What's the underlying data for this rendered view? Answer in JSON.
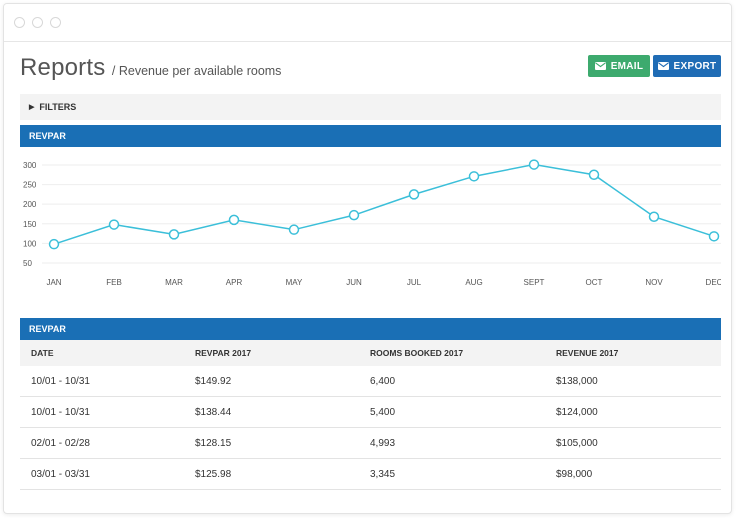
{
  "header": {
    "title": "Reports",
    "subtitle": "/ Revenue per available rooms",
    "email_label": "EMAIL",
    "export_label": "EXPORT"
  },
  "filters": {
    "label": "FILTERS"
  },
  "chart_section": {
    "title": "REVPAR"
  },
  "table_section": {
    "title": "REVPAR"
  },
  "colors": {
    "primary": "#1a6fb5",
    "email": "#3daa6e",
    "line": "#3bbfd9"
  },
  "chart_data": {
    "type": "line",
    "categories": [
      "JAN",
      "FEB",
      "MAR",
      "APR",
      "MAY",
      "JUN",
      "JUL",
      "AUG",
      "SEPT",
      "OCT",
      "NOV",
      "DEC"
    ],
    "series": [
      {
        "values": [
          98,
          148,
          123,
          160,
          135,
          172,
          225,
          271,
          301,
          275,
          168,
          118
        ]
      }
    ],
    "y_ticks": [
      50,
      100,
      150,
      200,
      250,
      300
    ],
    "ylim": [
      50,
      305
    ],
    "grid": true
  },
  "table": {
    "headers": [
      "DATE",
      "REVPAR 2017",
      "ROOMS BOOKED 2017",
      "REVENUE 2017"
    ],
    "rows": [
      [
        "10/01 - 10/31",
        "$149.92",
        "6,400",
        "$138,000"
      ],
      [
        "10/01 - 10/31",
        "$138.44",
        "5,400",
        "$124,000"
      ],
      [
        "02/01 - 02/28",
        "$128.15",
        "4,993",
        "$105,000"
      ],
      [
        "03/01 - 03/31",
        "$125.98",
        "3,345",
        "$98,000"
      ]
    ]
  }
}
